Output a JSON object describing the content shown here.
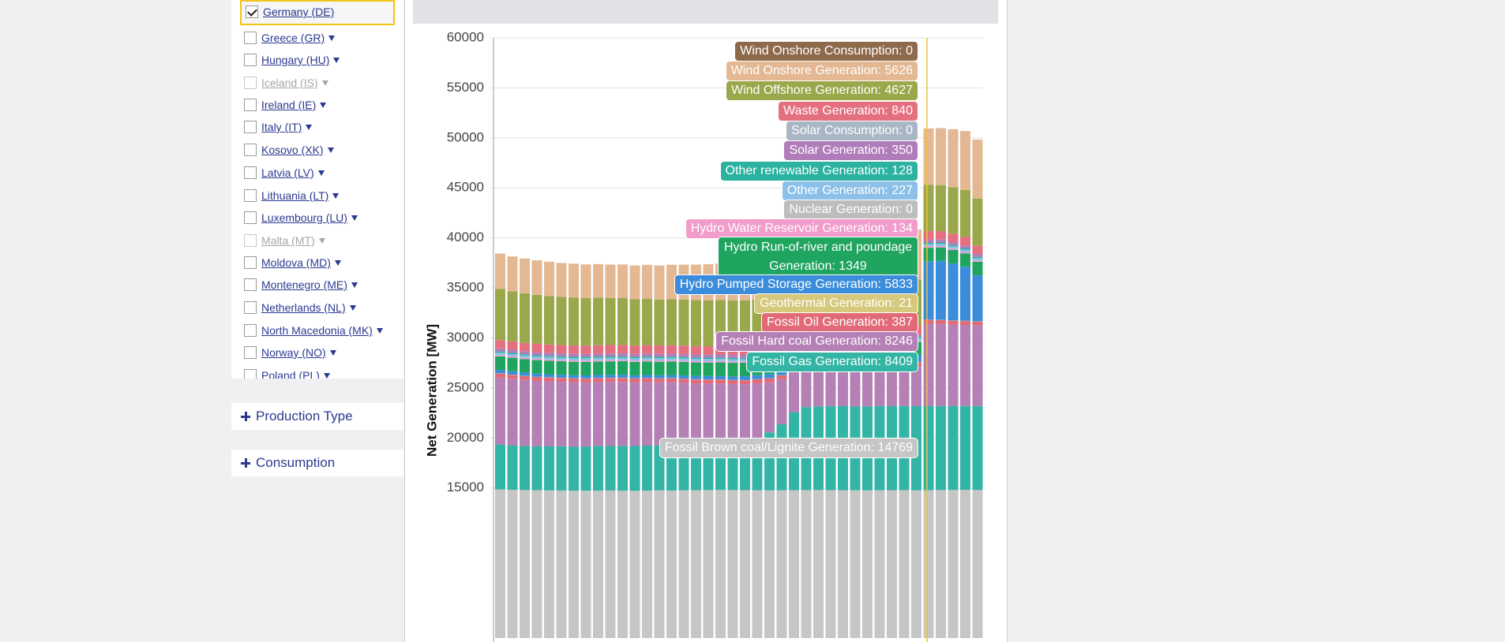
{
  "country_list": [
    {
      "label": "Germany (DE)",
      "checked": true,
      "disabled": false
    },
    {
      "label": "Greece (GR)",
      "checked": false,
      "disabled": false
    },
    {
      "label": "Hungary (HU)",
      "checked": false,
      "disabled": false
    },
    {
      "label": "Iceland (IS)",
      "checked": false,
      "disabled": true
    },
    {
      "label": "Ireland (IE)",
      "checked": false,
      "disabled": false
    },
    {
      "label": "Italy (IT)",
      "checked": false,
      "disabled": false
    },
    {
      "label": "Kosovo (XK)",
      "checked": false,
      "disabled": false
    },
    {
      "label": "Latvia (LV)",
      "checked": false,
      "disabled": false
    },
    {
      "label": "Lithuania (LT)",
      "checked": false,
      "disabled": false
    },
    {
      "label": "Luxembourg (LU)",
      "checked": false,
      "disabled": false
    },
    {
      "label": "Malta (MT)",
      "checked": false,
      "disabled": true
    },
    {
      "label": "Moldova (MD)",
      "checked": false,
      "disabled": false
    },
    {
      "label": "Montenegro (ME)",
      "checked": false,
      "disabled": false
    },
    {
      "label": "Netherlands (NL)",
      "checked": false,
      "disabled": false
    },
    {
      "label": "North Macedonia (MK)",
      "checked": false,
      "disabled": false
    },
    {
      "label": "Norway (NO)",
      "checked": false,
      "disabled": false
    },
    {
      "label": "Poland (PL)",
      "checked": false,
      "disabled": false
    }
  ],
  "panels": [
    "Production Type",
    "Consumption"
  ],
  "chart_data": {
    "type": "stacked_bar",
    "y_label": "Net Generation [MW]",
    "ylim": [
      0,
      60000
    ],
    "yticks": [
      15000,
      20000,
      25000,
      30000,
      35000,
      40000,
      45000,
      50000,
      55000,
      60000
    ],
    "grid": true,
    "series": [
      {
        "color": "#c6c6c6",
        "values": [
          14850,
          14820,
          14800,
          14780,
          14760,
          14750,
          14720,
          14730,
          14740,
          14750,
          14730,
          14720,
          14740,
          14760,
          14750,
          14770,
          14780,
          14790,
          14800,
          14790,
          14780,
          14770,
          14760,
          14770,
          14780,
          14790,
          14800,
          14790,
          14780,
          14770,
          14760,
          14770,
          14780,
          14790,
          14780,
          14769,
          14790,
          14800,
          14810,
          14800
        ]
      },
      {
        "color": "#33b5a5",
        "values": [
          4500,
          4450,
          4400,
          4380,
          4400,
          4420,
          4400,
          4420,
          4450,
          4450,
          4480,
          4480,
          4500,
          4500,
          4520,
          4500,
          4480,
          4500,
          4550,
          4600,
          4800,
          5200,
          5800,
          6600,
          7800,
          8300,
          8350,
          8400,
          8400,
          8380,
          8400,
          8420,
          8400,
          8410,
          8400,
          8409,
          8400,
          8380,
          8390,
          8400
        ]
      },
      {
        "color": "#b480b6",
        "values": [
          6700,
          6650,
          6600,
          6550,
          6500,
          6450,
          6450,
          6400,
          6400,
          6400,
          6400,
          6350,
          6350,
          6300,
          6300,
          6250,
          6200,
          6150,
          6100,
          6000,
          5800,
          5500,
          5000,
          4500,
          4000,
          3800,
          3700,
          3700,
          3600,
          3600,
          3600,
          3700,
          3800,
          3900,
          4000,
          8246,
          8200,
          8150,
          8100,
          8050
        ]
      },
      {
        "color": "#e26a78",
        "values": [
          390,
          390,
          385,
          385,
          380,
          380,
          380,
          385,
          385,
          390,
          390,
          390,
          390,
          390,
          390,
          390,
          390,
          390,
          390,
          390,
          390,
          390,
          390,
          390,
          390,
          390,
          390,
          390,
          390,
          390,
          390,
          390,
          390,
          390,
          390,
          387,
          390,
          390,
          390,
          390
        ]
      },
      {
        "color": "#d6c97c",
        "values": [
          21,
          21,
          21,
          21,
          21,
          21,
          21,
          21,
          21,
          21,
          21,
          21,
          21,
          21,
          21,
          21,
          21,
          21,
          21,
          21,
          21,
          21,
          21,
          21,
          21,
          21,
          21,
          21,
          21,
          21,
          21,
          21,
          21,
          21,
          21,
          21,
          21,
          21,
          21,
          21
        ]
      },
      {
        "color": "#3b8ddb",
        "values": [
          350,
          340,
          330,
          320,
          310,
          300,
          300,
          300,
          300,
          300,
          300,
          300,
          300,
          300,
          310,
          320,
          330,
          340,
          350,
          360,
          380,
          400,
          420,
          450,
          480,
          500,
          520,
          540,
          560,
          580,
          600,
          620,
          640,
          660,
          680,
          5833,
          5900,
          5700,
          5400,
          4600
        ]
      },
      {
        "color": "#1fa55f",
        "values": [
          1350,
          1350,
          1350,
          1350,
          1350,
          1350,
          1350,
          1350,
          1350,
          1350,
          1350,
          1350,
          1350,
          1350,
          1350,
          1350,
          1350,
          1350,
          1350,
          1350,
          1350,
          1350,
          1350,
          1350,
          1350,
          1350,
          1350,
          1350,
          1350,
          1350,
          1350,
          1350,
          1350,
          1350,
          1350,
          1349,
          1350,
          1350,
          1350,
          1350
        ]
      },
      {
        "color": "#f29ccb",
        "values": [
          130,
          130,
          130,
          130,
          130,
          130,
          130,
          130,
          130,
          130,
          130,
          130,
          130,
          130,
          130,
          130,
          130,
          130,
          130,
          130,
          130,
          130,
          130,
          130,
          130,
          130,
          130,
          130,
          130,
          130,
          130,
          130,
          130,
          130,
          130,
          134,
          130,
          130,
          130,
          130
        ]
      },
      {
        "color": "#bdbdbd",
        "values": [
          0,
          0,
          0,
          0,
          0,
          0,
          0,
          0,
          0,
          0,
          0,
          0,
          0,
          0,
          0,
          0,
          0,
          0,
          0,
          0,
          0,
          0,
          0,
          0,
          0,
          0,
          0,
          0,
          0,
          0,
          0,
          0,
          0,
          0,
          0,
          0,
          0,
          0,
          0,
          0
        ]
      },
      {
        "color": "#8cc0e8",
        "values": [
          230,
          230,
          230,
          230,
          230,
          230,
          230,
          230,
          230,
          230,
          230,
          230,
          230,
          230,
          230,
          230,
          230,
          230,
          230,
          230,
          230,
          230,
          230,
          230,
          230,
          230,
          230,
          230,
          230,
          230,
          230,
          230,
          230,
          230,
          230,
          227,
          230,
          230,
          230,
          230
        ]
      },
      {
        "color": "#2bb2a0",
        "values": [
          128,
          128,
          128,
          128,
          128,
          128,
          128,
          128,
          128,
          128,
          128,
          128,
          128,
          128,
          128,
          128,
          128,
          128,
          128,
          128,
          128,
          128,
          128,
          128,
          128,
          128,
          128,
          128,
          128,
          128,
          128,
          128,
          128,
          128,
          128,
          128,
          128,
          128,
          128,
          128
        ]
      },
      {
        "color": "#b07dba",
        "values": [
          300,
          300,
          300,
          300,
          300,
          300,
          300,
          300,
          300,
          300,
          300,
          300,
          300,
          300,
          300,
          300,
          300,
          300,
          300,
          300,
          300,
          300,
          300,
          300,
          300,
          300,
          300,
          300,
          300,
          300,
          300,
          300,
          300,
          300,
          300,
          350,
          300,
          300,
          300,
          300
        ]
      },
      {
        "color": "#e4707f",
        "values": [
          840,
          840,
          840,
          840,
          840,
          840,
          840,
          840,
          840,
          840,
          840,
          840,
          840,
          840,
          840,
          840,
          840,
          840,
          840,
          840,
          840,
          840,
          840,
          840,
          840,
          840,
          840,
          840,
          840,
          840,
          840,
          840,
          840,
          840,
          840,
          840,
          840,
          840,
          840,
          840
        ]
      },
      {
        "color": "#9aa74b",
        "values": [
          5100,
          5000,
          4950,
          4900,
          4850,
          4800,
          4800,
          4750,
          4750,
          4700,
          4700,
          4650,
          4650,
          4600,
          4600,
          4600,
          4600,
          4600,
          4600,
          4600,
          4600,
          4600,
          4600,
          4600,
          4600,
          4600,
          4600,
          4600,
          4600,
          4600,
          4600,
          4600,
          4600,
          4600,
          4600,
          4627,
          4600,
          4650,
          4700,
          4700
        ]
      },
      {
        "color": "#e3b893",
        "values": [
          3550,
          3500,
          3480,
          3450,
          3420,
          3400,
          3380,
          3370,
          3360,
          3350,
          3350,
          3360,
          3380,
          3400,
          3450,
          3500,
          3550,
          3600,
          3650,
          3700,
          3750,
          3800,
          3850,
          3900,
          3950,
          4000,
          4100,
          4200,
          4300,
          4400,
          4500,
          4600,
          4700,
          4800,
          5000,
          5626,
          5700,
          5800,
          5900,
          5900
        ]
      }
    ],
    "tooltip": [
      {
        "text": "Wind Onshore Consumption: 0",
        "color": "#8d6a4b"
      },
      {
        "text": "Wind Onshore Generation: 5626",
        "color": "#e3b893"
      },
      {
        "text": "Wind Offshore Generation: 4627",
        "color": "#9aa74b"
      },
      {
        "text": "Waste Generation: 840",
        "color": "#e4707f"
      },
      {
        "text": "Solar Consumption: 0",
        "color": "#a9b6c6"
      },
      {
        "text": "Solar Generation: 350",
        "color": "#b07dba"
      },
      {
        "text": "Other renewable Generation: 128",
        "color": "#2bb2a0"
      },
      {
        "text": "Other Generation: 227",
        "color": "#8cc0e8"
      },
      {
        "text": "Nuclear Generation: 0",
        "color": "#bdbdbd"
      },
      {
        "text": "Hydro Water Reservoir Generation: 134",
        "color": "#f29ccb"
      },
      {
        "text": "Hydro Run-of-river and poundage Generation: 1349",
        "color": "#1fa55f"
      },
      {
        "text": "Hydro Pumped Storage Generation: 5833",
        "color": "#3b8ddb"
      },
      {
        "text": "Geothermal Generation: 21",
        "color": "#d6c97c"
      },
      {
        "text": "Fossil Oil Generation: 387",
        "color": "#e26a78"
      },
      {
        "text": "Fossil Hard coal Generation: 8246",
        "color": "#b480b6"
      },
      {
        "text": "Fossil Gas Generation: 8409",
        "color": "#33b5a5"
      },
      {
        "text": "Fossil Brown coal/Lignite Generation: 14769",
        "color": "#c6c6c6"
      }
    ]
  }
}
